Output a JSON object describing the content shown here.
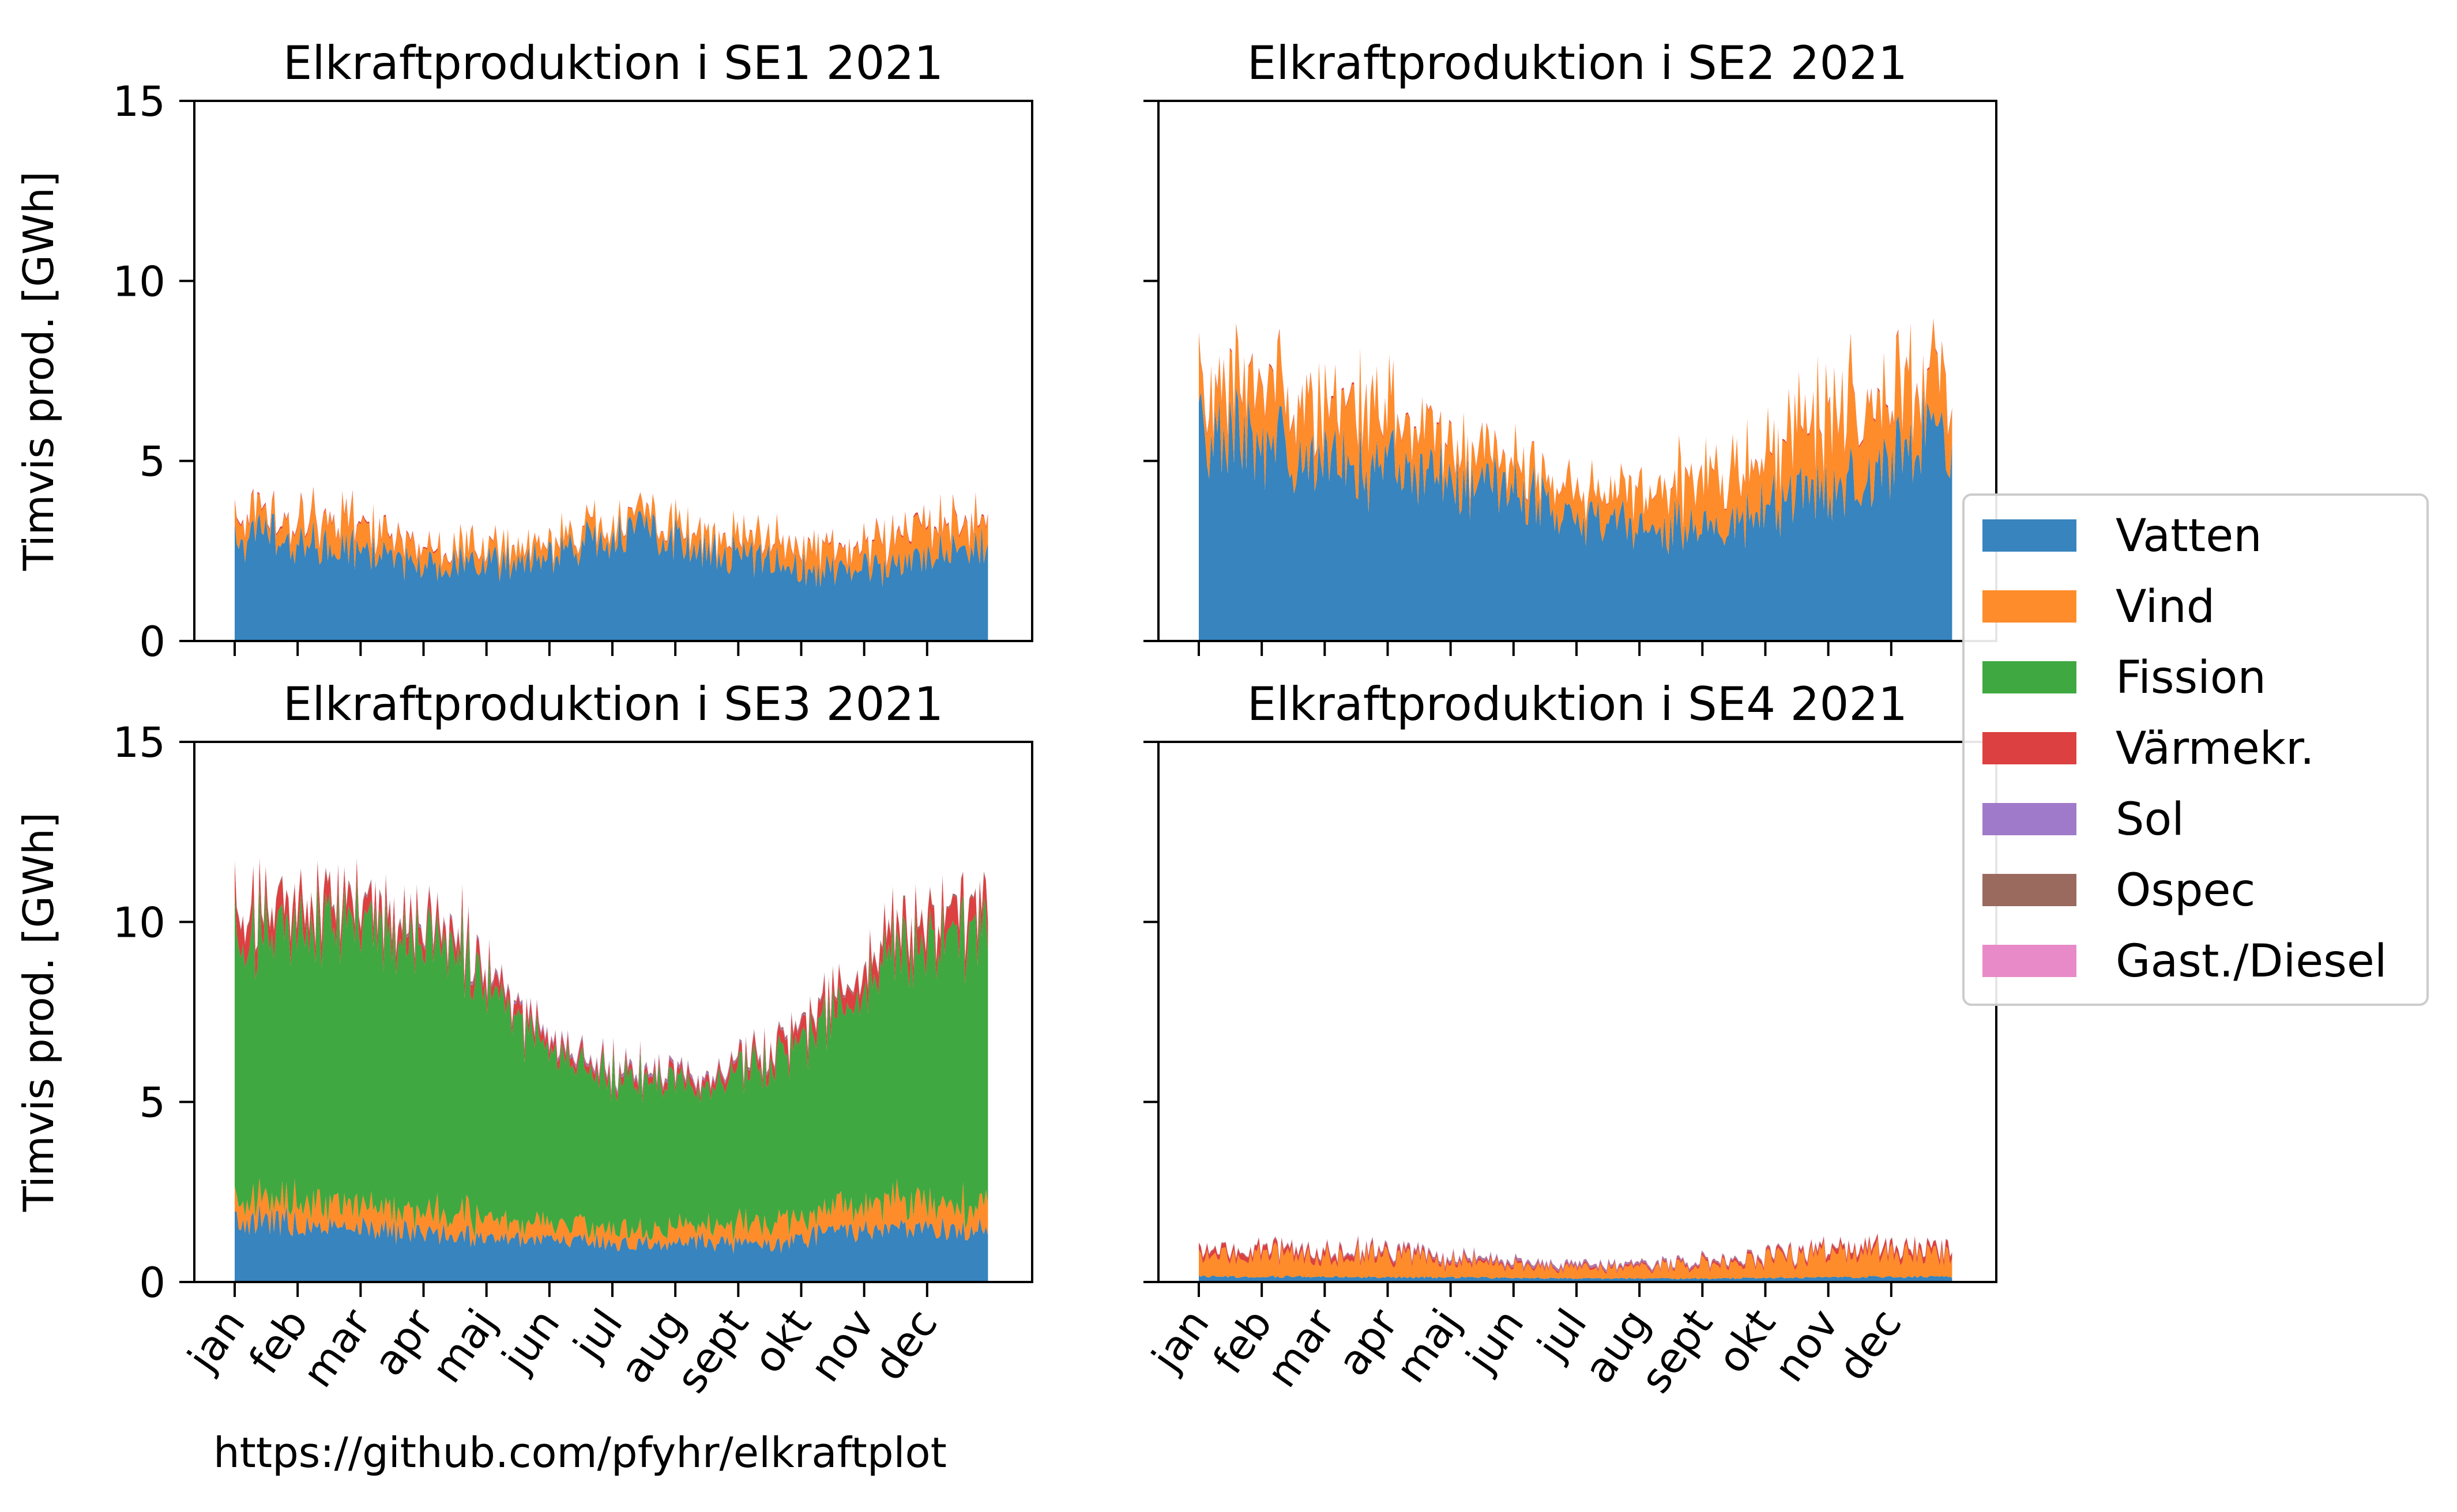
{
  "source_note": "https://github.com/pfyhr/elkraftplot",
  "legend": {
    "placement": "right",
    "items": [
      {
        "label": "Vatten",
        "color": "#3784BE"
      },
      {
        "label": "Vind",
        "color": "#FF8C2A"
      },
      {
        "label": "Fission",
        "color": "#40A840"
      },
      {
        "label": "Värmekr.",
        "color": "#DD4040"
      },
      {
        "label": "Sol",
        "color": "#A07ACA"
      },
      {
        "label": "Ospec",
        "color": "#9A6A5E"
      },
      {
        "label": "Gast./Diesel",
        "color": "#E88AC8"
      }
    ]
  },
  "chart_data": [
    {
      "type": "area",
      "stacked": true,
      "title": "Elkraftproduktion i SE1 2021",
      "ylabel": "Timvis prod. [GWh]",
      "ylim": [
        0,
        15
      ],
      "yticks": [
        "0",
        "5",
        "10",
        "15"
      ],
      "xticks": [
        "jan",
        "feb",
        "mar",
        "apr",
        "maj",
        "jun",
        "jul",
        "aug",
        "sept",
        "okt",
        "nov",
        "dec"
      ],
      "x_months": [
        0.5,
        1.5,
        2.5,
        3.5,
        4.5,
        5.5,
        6.5,
        7.5,
        8.5,
        9.5,
        10.5,
        11.5
      ],
      "series": [
        {
          "name": "Vatten",
          "values": [
            2.9,
            2.7,
            2.2,
            2.1,
            2.2,
            2.6,
            3.1,
            2.5,
            2.2,
            1.9,
            2.1,
            2.6
          ]
        },
        {
          "name": "Vind",
          "values": [
            0.5,
            0.7,
            0.6,
            0.5,
            0.4,
            0.4,
            0.4,
            0.5,
            0.6,
            0.6,
            0.7,
            0.8
          ]
        },
        {
          "name": "Fission",
          "values": [
            0,
            0,
            0,
            0,
            0,
            0,
            0,
            0,
            0,
            0,
            0,
            0
          ]
        },
        {
          "name": "Värmekr.",
          "values": [
            0.05,
            0.05,
            0.05,
            0.03,
            0.02,
            0.02,
            0.02,
            0.02,
            0.03,
            0.04,
            0.05,
            0.05
          ]
        },
        {
          "name": "Sol",
          "values": [
            0,
            0,
            0,
            0,
            0,
            0,
            0,
            0,
            0,
            0,
            0,
            0
          ]
        },
        {
          "name": "Ospec",
          "values": [
            0,
            0,
            0,
            0,
            0,
            0,
            0,
            0,
            0,
            0,
            0,
            0
          ]
        },
        {
          "name": "Gast./Diesel",
          "values": [
            0,
            0,
            0,
            0,
            0,
            0,
            0,
            0,
            0,
            0,
            0,
            0
          ]
        }
      ]
    },
    {
      "type": "area",
      "stacked": true,
      "title": "Elkraftproduktion i SE2 2021",
      "ylabel": "",
      "ylim": [
        0,
        15
      ],
      "yticks": [
        "",
        "",
        "",
        ""
      ],
      "xticks": [
        "jan",
        "feb",
        "mar",
        "apr",
        "maj",
        "jun",
        "jul",
        "aug",
        "sept",
        "okt",
        "nov",
        "dec"
      ],
      "x_months": [
        0.5,
        1.5,
        2.5,
        3.5,
        4.5,
        5.5,
        6.5,
        7.5,
        8.5,
        9.5,
        10.5,
        11.5
      ],
      "series": [
        {
          "name": "Vatten",
          "values": [
            5.8,
            5.2,
            5.0,
            4.6,
            4.6,
            3.8,
            3.2,
            3.2,
            3.3,
            3.9,
            4.4,
            5.6
          ]
        },
        {
          "name": "Vind",
          "values": [
            1.3,
            1.8,
            1.6,
            1.4,
            0.8,
            0.7,
            0.8,
            1.2,
            1.4,
            1.9,
            2.2,
            1.6
          ]
        },
        {
          "name": "Fission",
          "values": [
            0,
            0,
            0,
            0,
            0,
            0,
            0,
            0,
            0,
            0,
            0,
            0
          ]
        },
        {
          "name": "Värmekr.",
          "values": [
            0.05,
            0.05,
            0.05,
            0.04,
            0.03,
            0.02,
            0.02,
            0.02,
            0.03,
            0.04,
            0.05,
            0.05
          ]
        },
        {
          "name": "Sol",
          "values": [
            0,
            0,
            0,
            0,
            0,
            0,
            0,
            0,
            0,
            0,
            0,
            0
          ]
        },
        {
          "name": "Ospec",
          "values": [
            0,
            0,
            0,
            0,
            0,
            0,
            0,
            0,
            0,
            0,
            0,
            0
          ]
        },
        {
          "name": "Gast./Diesel",
          "values": [
            0,
            0,
            0,
            0,
            0,
            0,
            0,
            0,
            0,
            0,
            0,
            0
          ]
        }
      ]
    },
    {
      "type": "area",
      "stacked": true,
      "title": "Elkraftproduktion i SE3 2021",
      "ylabel": "Timvis prod. [GWh]",
      "ylim": [
        0,
        15
      ],
      "yticks": [
        "0",
        "5",
        "10",
        "15"
      ],
      "xticks": [
        "jan",
        "feb",
        "mar",
        "apr",
        "maj",
        "jun",
        "jul",
        "aug",
        "sept",
        "okt",
        "nov",
        "dec"
      ],
      "x_months": [
        0.5,
        1.5,
        2.5,
        3.5,
        4.5,
        5.5,
        6.5,
        7.5,
        8.5,
        9.5,
        10.5,
        11.5
      ],
      "series": [
        {
          "name": "Vatten",
          "values": [
            1.7,
            1.6,
            1.4,
            1.3,
            1.2,
            1.1,
            1.1,
            1.1,
            1.0,
            1.4,
            1.5,
            1.4
          ]
        },
        {
          "name": "Vind",
          "values": [
            0.5,
            0.7,
            0.6,
            0.6,
            0.5,
            0.4,
            0.4,
            0.5,
            0.6,
            0.7,
            0.8,
            0.7
          ]
        },
        {
          "name": "Fission",
          "values": [
            7.4,
            7.9,
            7.7,
            7.4,
            5.6,
            4.3,
            4.2,
            3.9,
            4.5,
            5.3,
            6.9,
            7.6
          ]
        },
        {
          "name": "Värmekr.",
          "values": [
            0.7,
            0.6,
            0.5,
            0.4,
            0.3,
            0.2,
            0.2,
            0.2,
            0.3,
            0.5,
            0.6,
            0.7
          ]
        },
        {
          "name": "Sol",
          "values": [
            0,
            0.01,
            0.03,
            0.05,
            0.06,
            0.06,
            0.06,
            0.05,
            0.03,
            0.02,
            0.01,
            0
          ]
        },
        {
          "name": "Ospec",
          "values": [
            0.05,
            0.05,
            0.05,
            0.04,
            0.03,
            0.03,
            0.03,
            0.03,
            0.04,
            0.05,
            0.05,
            0.05
          ]
        },
        {
          "name": "Gast./Diesel",
          "values": [
            0.01,
            0.01,
            0.01,
            0.01,
            0.01,
            0.01,
            0.01,
            0.01,
            0.01,
            0.01,
            0.01,
            0.01
          ]
        }
      ]
    },
    {
      "type": "area",
      "stacked": true,
      "title": "Elkraftproduktion i SE4 2021",
      "ylabel": "",
      "ylim": [
        0,
        15
      ],
      "yticks": [
        "",
        "",
        "",
        ""
      ],
      "xticks": [
        "jan",
        "feb",
        "mar",
        "apr",
        "maj",
        "jun",
        "jul",
        "aug",
        "sept",
        "okt",
        "nov",
        "dec"
      ],
      "x_months": [
        0.5,
        1.5,
        2.5,
        3.5,
        4.5,
        5.5,
        6.5,
        7.5,
        8.5,
        9.5,
        10.5,
        11.5
      ],
      "series": [
        {
          "name": "Vatten",
          "values": [
            0.15,
            0.15,
            0.14,
            0.13,
            0.12,
            0.1,
            0.1,
            0.1,
            0.1,
            0.12,
            0.14,
            0.15
          ]
        },
        {
          "name": "Vind",
          "values": [
            0.55,
            0.65,
            0.6,
            0.55,
            0.4,
            0.3,
            0.3,
            0.35,
            0.45,
            0.6,
            0.7,
            0.65
          ]
        },
        {
          "name": "Fission",
          "values": [
            0,
            0,
            0,
            0,
            0,
            0,
            0,
            0,
            0,
            0,
            0,
            0
          ]
        },
        {
          "name": "Värmekr.",
          "values": [
            0.15,
            0.15,
            0.12,
            0.1,
            0.07,
            0.05,
            0.05,
            0.05,
            0.07,
            0.1,
            0.14,
            0.16
          ]
        },
        {
          "name": "Sol",
          "values": [
            0,
            0.01,
            0.02,
            0.03,
            0.04,
            0.04,
            0.04,
            0.03,
            0.02,
            0.01,
            0,
            0
          ]
        },
        {
          "name": "Ospec",
          "values": [
            0.02,
            0.02,
            0.02,
            0.02,
            0.02,
            0.02,
            0.02,
            0.02,
            0.02,
            0.02,
            0.02,
            0.02
          ]
        },
        {
          "name": "Gast./Diesel",
          "values": [
            0.01,
            0.01,
            0.01,
            0.01,
            0.01,
            0.01,
            0.01,
            0.01,
            0.01,
            0.01,
            0.01,
            0.01
          ]
        }
      ]
    }
  ]
}
